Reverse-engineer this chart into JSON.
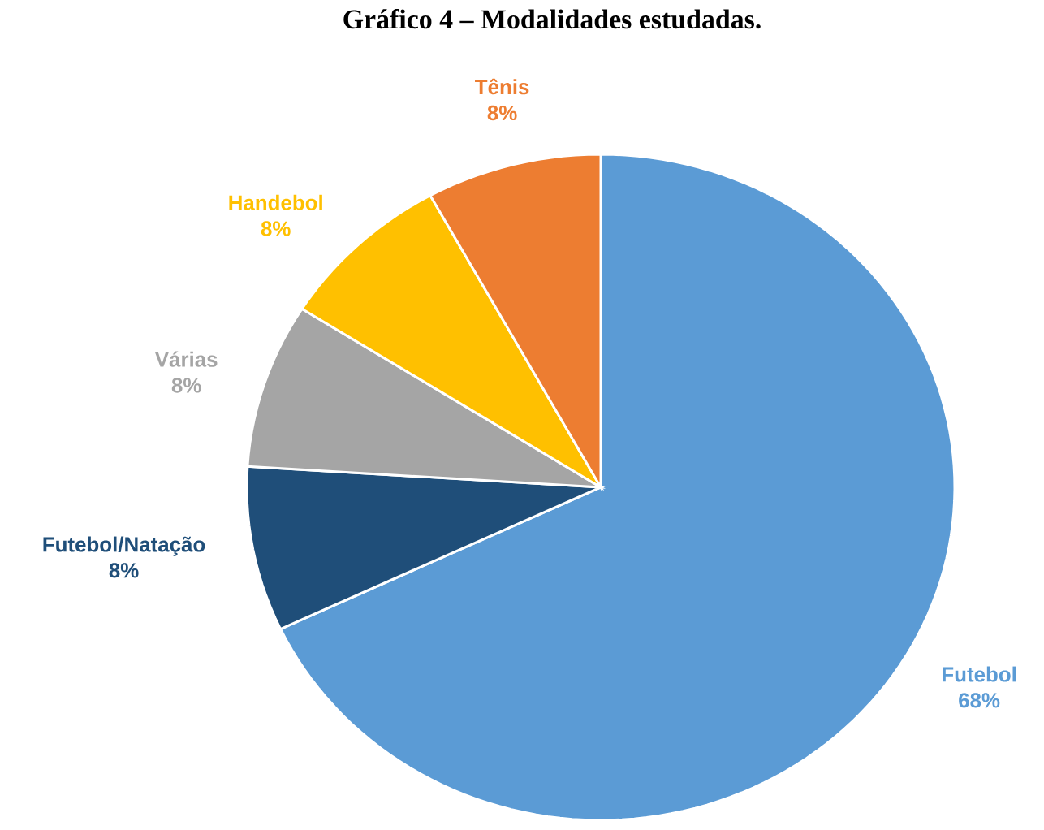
{
  "chart_data": {
    "type": "pie",
    "title": "Gráfico 4 – Modalidades estudadas.",
    "categories": [
      "Futebol",
      "Futebol/Natação",
      "Várias",
      "Handebol",
      "Tênis"
    ],
    "values": [
      68,
      8,
      8,
      8,
      8
    ],
    "value_labels": [
      "68%",
      "8%",
      "8%",
      "8%",
      "8%"
    ],
    "colors": [
      "#5b9bd5",
      "#1f4e79",
      "#a5a5a5",
      "#ffc000",
      "#ed7d31"
    ]
  }
}
